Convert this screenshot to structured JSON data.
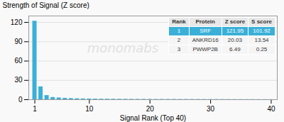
{
  "chart_data": {
    "type": "bar",
    "xlabel": "Signal Rank (Top 40)",
    "ylabel": "Strength of Signal (Z score)",
    "x": [
      1,
      2,
      3,
      4,
      5,
      6,
      7,
      8,
      9,
      10,
      11,
      12,
      13,
      14,
      15,
      16,
      17,
      18,
      19,
      20,
      21,
      22,
      23,
      24,
      25,
      26,
      27,
      28,
      29,
      30,
      31,
      32,
      33,
      34,
      35,
      36,
      37,
      38,
      39,
      40
    ],
    "values": [
      121.95,
      20.03,
      6.49,
      3.5,
      2.8,
      2.2,
      1.8,
      1.5,
      1.3,
      1.1,
      1.0,
      0.9,
      0.85,
      0.8,
      0.75,
      0.7,
      0.65,
      0.6,
      0.58,
      0.55,
      0.52,
      0.5,
      0.48,
      0.46,
      0.44,
      0.42,
      0.4,
      0.38,
      0.36,
      0.34,
      0.32,
      0.3,
      0.28,
      0.26,
      0.24,
      0.22,
      0.2,
      0.18,
      0.16,
      0.14
    ],
    "color": "#3ab0d8",
    "xlim": [
      0,
      41
    ],
    "ylim": [
      0,
      130
    ],
    "xticks": [
      1,
      10,
      20,
      30,
      40
    ],
    "yticks": [
      0,
      30,
      60,
      90,
      120
    ],
    "grid": true,
    "watermark": "monomabs",
    "table": {
      "columns": [
        "Rank",
        "Protein",
        "Z score",
        "S score"
      ],
      "rows": [
        [
          "1",
          "SRF",
          "121.95",
          "101.92"
        ],
        [
          "2",
          "ANKRD16",
          "20.03",
          "13.54"
        ],
        [
          "3",
          "PWWP2B",
          "6.49",
          "0.25"
        ]
      ]
    }
  }
}
